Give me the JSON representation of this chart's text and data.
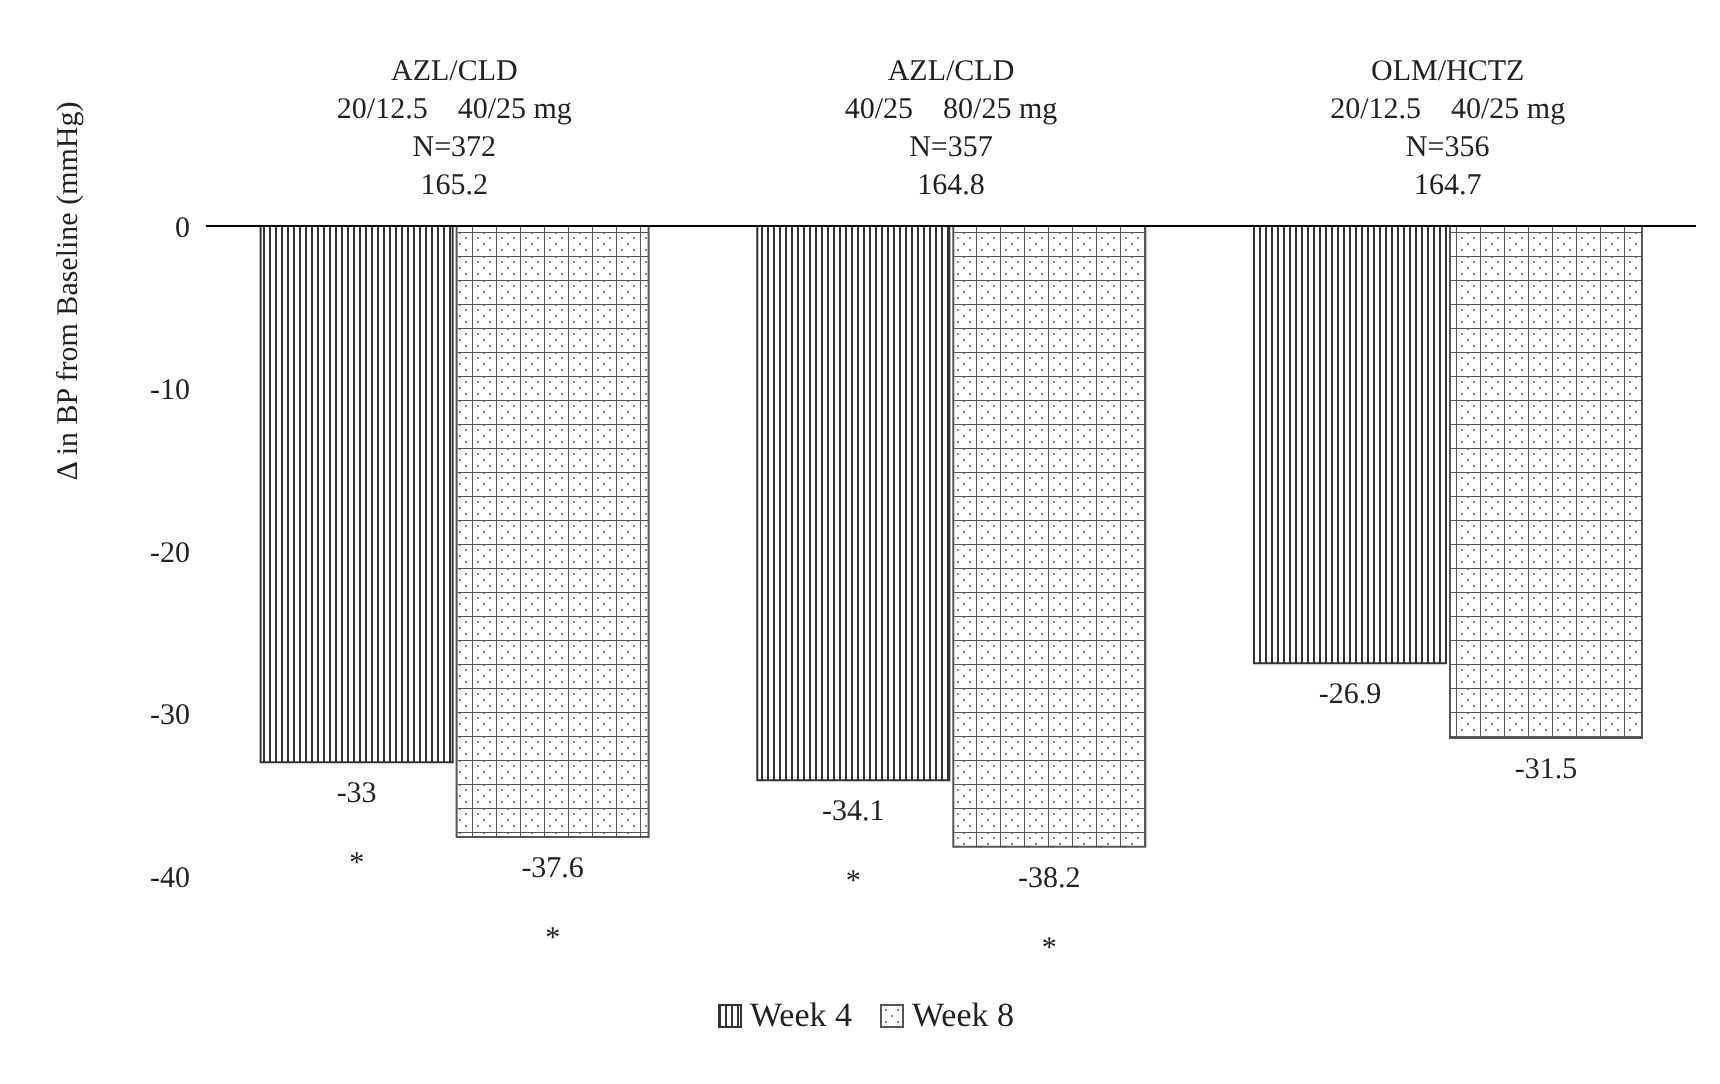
{
  "chart_data": {
    "type": "bar",
    "ylabel": "Δ in BP from Baseline (mmHg)",
    "categories": [
      "AZL/CLD\n20/12.5    40/25 mg\nN=372\n165.2",
      "AZL/CLD\n40/25    80/25 mg\nN=357\n164.8",
      "OLM/HCTZ\n20/12.5    40/25 mg\nN=356\n164.7"
    ],
    "series": [
      {
        "name": "Week 4",
        "color": "#333333",
        "values": [
          -33,
          -34.1,
          -26.9
        ]
      },
      {
        "name": "Week 8",
        "color": "#555555",
        "values": [
          -37.6,
          -38.2,
          -31.5
        ]
      }
    ],
    "ylim": [
      -40,
      0
    ],
    "yticks": [
      0,
      -10,
      -20,
      -30,
      -40
    ],
    "data_labels": true,
    "legend": "bottom",
    "grid": false,
    "annotations": [
      "*",
      "*",
      "*",
      "*"
    ]
  }
}
